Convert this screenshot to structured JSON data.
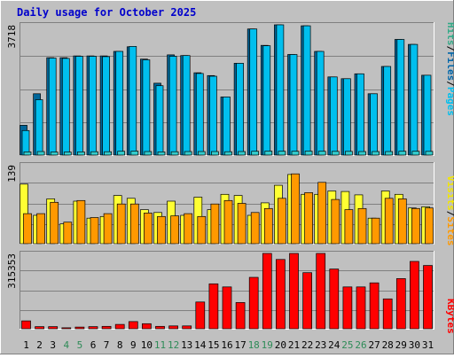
{
  "chart_data": {
    "type": "bar",
    "title": "Daily usage for October 2025",
    "categories": [
      "1",
      "2",
      "3",
      "4",
      "5",
      "6",
      "7",
      "8",
      "9",
      "10",
      "11",
      "12",
      "13",
      "14",
      "15",
      "16",
      "17",
      "18",
      "19",
      "20",
      "21",
      "22",
      "23",
      "24",
      "25",
      "26",
      "27",
      "28",
      "29",
      "30",
      "31"
    ],
    "weekend_days": [
      "4",
      "5",
      "11",
      "12",
      "18",
      "19",
      "25",
      "26"
    ],
    "panels": [
      {
        "id": "hits",
        "y_tick_label": "3718",
        "ylim": [
          0,
          3718
        ],
        "legend_parts": [
          "Pages",
          "/",
          "Files",
          "/",
          "Hits"
        ],
        "series": [
          {
            "name": "Hits",
            "color": "#006699",
            "values": [
              850,
              1750,
              2780,
              2780,
              2830,
              2830,
              2830,
              2960,
              3090,
              2740,
              2050,
              2860,
              2840,
              2350,
              2270,
              1660,
              2620,
              3600,
              3130,
              3718,
              2870,
              3690,
              2960,
              2230,
              2180,
              2320,
              1750,
              2530,
              3300,
              3160,
              2280
            ]
          },
          {
            "name": "Files",
            "color": "#00BFEE",
            "values": [
              700,
              1580,
              2770,
              2760,
              2820,
              2820,
              2810,
              2960,
              3100,
              2720,
              1980,
              2820,
              2840,
              2330,
              2250,
              1660,
              2620,
              3600,
              3120,
              3718,
              2870,
              3690,
              2960,
              2230,
              2180,
              2320,
              1750,
              2530,
              3300,
              3160,
              2280
            ]
          },
          {
            "name": "Pages",
            "color": "#33CCCC",
            "values": [
              90,
              100,
              85,
              85,
              90,
              95,
              95,
              110,
              115,
              100,
              90,
              95,
              100,
              100,
              100,
              95,
              100,
              110,
              115,
              110,
              110,
              115,
              110,
              105,
              105,
              100,
              100,
              100,
              110,
              110,
              105
            ]
          }
        ]
      },
      {
        "id": "visits",
        "y_tick_label": "139",
        "ylim": [
          0,
          139
        ],
        "legend_parts": [
          "Sites",
          "/",
          "Visits"
        ],
        "series": [
          {
            "name": "Visits",
            "color": "#FFFF33",
            "values": [
              105,
              50,
              79,
              35,
              75,
              45,
              48,
              85,
              80,
              60,
              55,
              75,
              50,
              82,
              60,
              87,
              85,
              50,
              72,
              103,
              122,
              87,
              87,
              93,
              92,
              86,
              45,
              93,
              87,
              63,
              65
            ]
          },
          {
            "name": "Sites",
            "color": "#FF9900",
            "values": [
              53,
              53,
              73,
              38,
              76,
              46,
              53,
              70,
              70,
              54,
              48,
              49,
              53,
              48,
              70,
              76,
              71,
              55,
              62,
              80,
              123,
              90,
              108,
              78,
              60,
              62,
              45,
              80,
              79,
              62,
              63
            ]
          }
        ]
      },
      {
        "id": "kbytes",
        "y_tick_label": "315353",
        "ylim": [
          0,
          315353
        ],
        "legend_parts": [
          "KBytes"
        ],
        "series": [
          {
            "name": "KBytes",
            "color": "#FF0000",
            "values": [
              33000,
              9000,
              9000,
              4000,
              7000,
              9000,
              10000,
              18000,
              30000,
              21000,
              10000,
              12000,
              12000,
              112000,
              188000,
              175000,
              110000,
              215000,
              315353,
              290000,
              315353,
              235000,
              315353,
              250000,
              175000,
              175000,
              192000,
              125000,
              210000,
              282000,
              265000
            ]
          }
        ]
      }
    ]
  }
}
